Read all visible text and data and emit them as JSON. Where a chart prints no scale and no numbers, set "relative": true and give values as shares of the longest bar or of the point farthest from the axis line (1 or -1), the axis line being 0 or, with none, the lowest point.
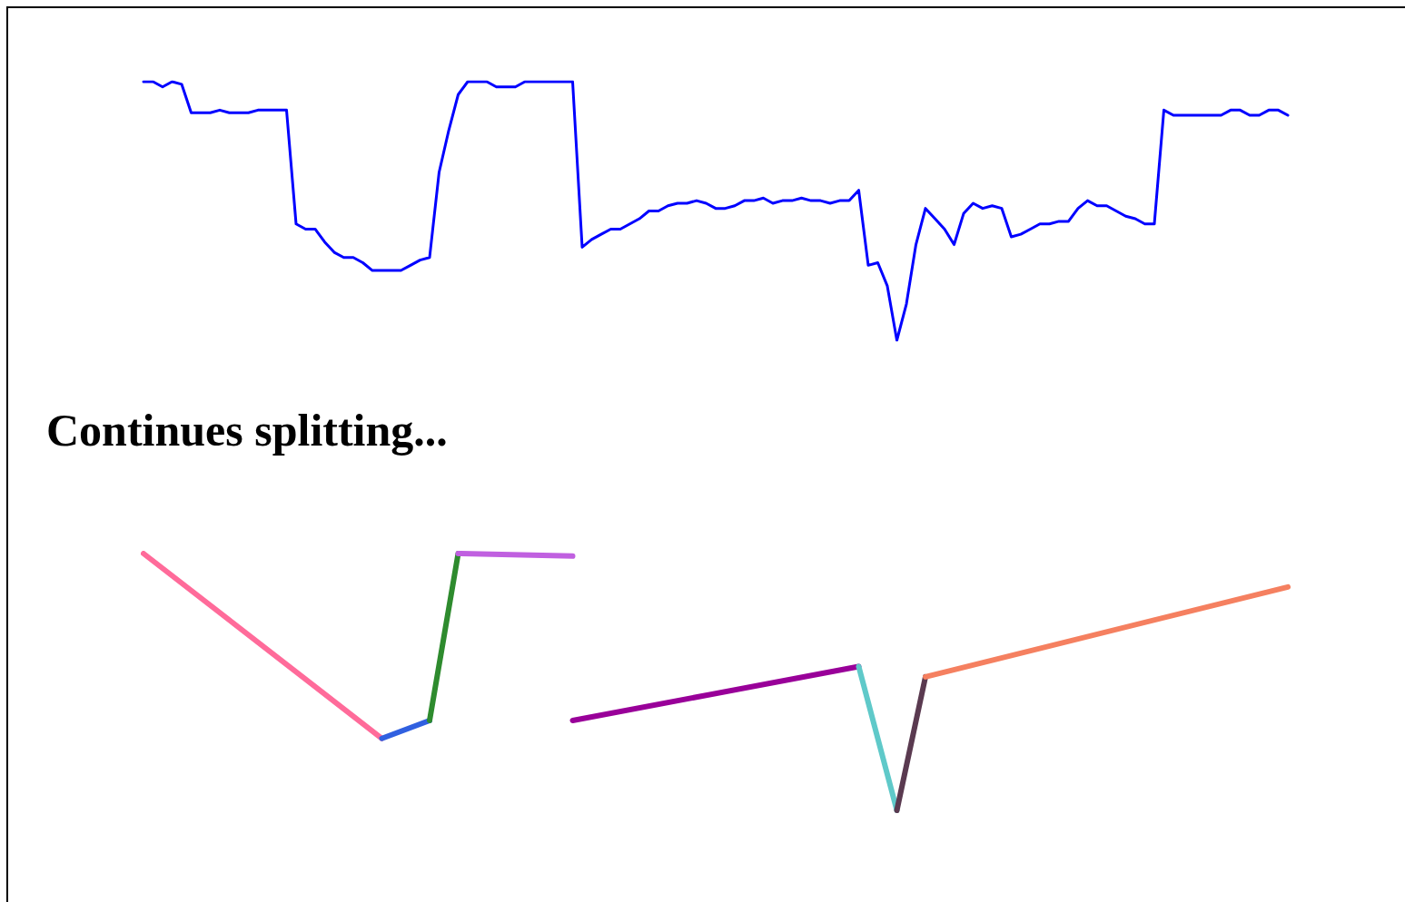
{
  "chart_data": [
    {
      "type": "line",
      "relative": true,
      "categories": [
        null,
        null,
        null,
        null,
        null,
        null,
        null,
        null,
        null,
        null,
        null,
        null,
        null,
        null,
        null,
        null,
        null,
        null,
        null,
        null,
        null,
        null,
        null,
        null,
        null,
        null,
        null,
        null,
        null,
        null,
        null,
        null,
        null,
        null,
        null,
        null,
        null,
        null,
        null,
        null,
        null,
        null,
        null,
        null,
        null,
        null,
        null,
        null,
        null,
        null,
        null,
        null,
        null,
        null,
        null,
        null,
        null,
        null,
        null,
        null,
        null,
        null,
        null,
        null,
        null,
        null,
        null,
        null,
        null,
        null,
        null,
        null,
        null,
        null,
        null,
        null,
        null,
        null,
        null,
        null,
        null,
        null,
        null,
        null,
        null,
        null,
        null,
        null,
        null,
        null,
        null,
        null,
        null,
        null,
        null,
        null,
        null,
        null,
        null,
        null,
        null,
        null,
        null,
        null,
        null,
        null,
        null,
        null,
        null,
        null,
        null,
        null,
        null,
        null,
        null,
        null,
        null,
        null,
        null,
        null,
        null
      ],
      "series": [
        {
          "color": "#0000ff",
          "values": [
            1.0,
            1.0,
            0.98,
            1.0,
            0.99,
            0.88,
            0.88,
            0.88,
            0.89,
            0.88,
            0.88,
            0.88,
            0.89,
            0.89,
            0.89,
            0.89,
            0.45,
            0.43,
            0.43,
            0.38,
            0.34,
            0.32,
            0.32,
            0.3,
            0.27,
            0.27,
            0.27,
            0.27,
            0.29,
            0.31,
            0.32,
            0.65,
            0.81,
            0.95,
            1.0,
            1.0,
            1.0,
            0.98,
            0.98,
            0.98,
            1.0,
            1.0,
            1.0,
            1.0,
            1.0,
            1.0,
            0.36,
            0.39,
            0.41,
            0.43,
            0.43,
            0.45,
            0.47,
            0.5,
            0.5,
            0.52,
            0.53,
            0.53,
            0.54,
            0.53,
            0.51,
            0.51,
            0.52,
            0.54,
            0.54,
            0.55,
            0.53,
            0.54,
            0.54,
            0.55,
            0.54,
            0.54,
            0.53,
            0.54,
            0.54,
            0.58,
            0.29,
            0.3,
            0.21,
            0.0,
            0.14,
            0.37,
            0.51,
            0.47,
            0.43,
            0.37,
            0.49,
            0.53,
            0.51,
            0.52,
            0.51,
            0.4,
            0.41,
            0.43,
            0.45,
            0.45,
            0.46,
            0.46,
            0.51,
            0.54,
            0.52,
            0.52,
            0.5,
            0.48,
            0.47,
            0.45,
            0.45,
            0.89,
            0.87,
            0.87,
            0.87,
            0.87,
            0.87,
            0.87,
            0.89,
            0.89,
            0.87,
            0.87,
            0.89,
            0.89,
            0.87
          ]
        }
      ]
    },
    {
      "type": "line",
      "relative": true,
      "title": "Continues splitting...",
      "categories": [
        null,
        null,
        null,
        null,
        null,
        null,
        null,
        null,
        null,
        null,
        null,
        null,
        null,
        null,
        null,
        null,
        null,
        null,
        null,
        null,
        null,
        null,
        null,
        null,
        null,
        null,
        null,
        null,
        null,
        null,
        null,
        null,
        null,
        null,
        null,
        null,
        null,
        null,
        null,
        null,
        null,
        null,
        null,
        null,
        null,
        null,
        null,
        null,
        null,
        null,
        null,
        null,
        null,
        null,
        null,
        null,
        null,
        null,
        null,
        null,
        null,
        null,
        null,
        null,
        null,
        null,
        null,
        null,
        null,
        null,
        null,
        null,
        null,
        null,
        null,
        null,
        null,
        null,
        null,
        null,
        null,
        null,
        null,
        null,
        null,
        null,
        null,
        null,
        null,
        null,
        null,
        null,
        null,
        null,
        null,
        null,
        null,
        null,
        null,
        null,
        null,
        null,
        null,
        null,
        null,
        null,
        null,
        null,
        null,
        null,
        null,
        null,
        null,
        null,
        null,
        null,
        null,
        null,
        null,
        null,
        null
      ],
      "series": [
        {
          "color": "#ff6b9a",
          "values": [
            1.0,
            null,
            null,
            null,
            null,
            null,
            null,
            null,
            null,
            null,
            null,
            null,
            null,
            null,
            null,
            null,
            null,
            null,
            null,
            null,
            null,
            null,
            null,
            null,
            null,
            0.28,
            null,
            null,
            null,
            null,
            null,
            null,
            null,
            null,
            null,
            null,
            null,
            null,
            null,
            null,
            null,
            null,
            null,
            null,
            null,
            null,
            null,
            null,
            null,
            null,
            null,
            null,
            null,
            null,
            null,
            null,
            null,
            null,
            null,
            null,
            null,
            null,
            null,
            null,
            null,
            null,
            null,
            null,
            null,
            null,
            null,
            null,
            null,
            null,
            null,
            null,
            null,
            null,
            null,
            null,
            null,
            null,
            null,
            null,
            null,
            null,
            null,
            null,
            null,
            null,
            null,
            null,
            null,
            null,
            null,
            null,
            null,
            null,
            null,
            null,
            null,
            null,
            null,
            null,
            null,
            null,
            null,
            null,
            null,
            null,
            null,
            null,
            null,
            null,
            null,
            null,
            null,
            null,
            null,
            null,
            null
          ]
        },
        {
          "color": "#3060e0",
          "values": [
            null,
            null,
            null,
            null,
            null,
            null,
            null,
            null,
            null,
            null,
            null,
            null,
            null,
            null,
            null,
            null,
            null,
            null,
            null,
            null,
            null,
            null,
            null,
            null,
            null,
            0.28,
            null,
            null,
            null,
            null,
            0.35,
            null,
            null,
            null,
            null,
            null,
            null,
            null,
            null,
            null,
            null,
            null,
            null,
            null,
            null,
            null,
            null,
            null,
            null,
            null,
            null,
            null,
            null,
            null,
            null,
            null,
            null,
            null,
            null,
            null,
            null,
            null,
            null,
            null,
            null,
            null,
            null,
            null,
            null,
            null,
            null,
            null,
            null,
            null,
            null,
            null,
            null,
            null,
            null,
            null,
            null,
            null,
            null,
            null,
            null,
            null,
            null,
            null,
            null,
            null,
            null,
            null,
            null,
            null,
            null,
            null,
            null,
            null,
            null,
            null,
            null,
            null,
            null,
            null,
            null,
            null,
            null,
            null,
            null,
            null,
            null,
            null,
            null,
            null,
            null,
            null,
            null,
            null,
            null,
            null,
            null
          ]
        },
        {
          "color": "#2e8b2e",
          "values": [
            null,
            null,
            null,
            null,
            null,
            null,
            null,
            null,
            null,
            null,
            null,
            null,
            null,
            null,
            null,
            null,
            null,
            null,
            null,
            null,
            null,
            null,
            null,
            null,
            null,
            null,
            null,
            null,
            null,
            null,
            0.35,
            null,
            null,
            1.0,
            null,
            null,
            null,
            null,
            null,
            null,
            null,
            null,
            null,
            null,
            null,
            null,
            null,
            null,
            null,
            null,
            null,
            null,
            null,
            null,
            null,
            null,
            null,
            null,
            null,
            null,
            null,
            null,
            null,
            null,
            null,
            null,
            null,
            null,
            null,
            null,
            null,
            null,
            null,
            null,
            null,
            null,
            null,
            null,
            null,
            null,
            null,
            null,
            null,
            null,
            null,
            null,
            null,
            null,
            null,
            null,
            null,
            null,
            null,
            null,
            null,
            null,
            null,
            null,
            null,
            null,
            null,
            null,
            null,
            null,
            null,
            null,
            null,
            null,
            null,
            null,
            null,
            null,
            null,
            null,
            null,
            null,
            null,
            null,
            null,
            null,
            null
          ]
        },
        {
          "color": "#c060e0",
          "values": [
            null,
            null,
            null,
            null,
            null,
            null,
            null,
            null,
            null,
            null,
            null,
            null,
            null,
            null,
            null,
            null,
            null,
            null,
            null,
            null,
            null,
            null,
            null,
            null,
            null,
            null,
            null,
            null,
            null,
            null,
            null,
            null,
            null,
            1.0,
            null,
            null,
            null,
            null,
            null,
            null,
            null,
            null,
            null,
            null,
            null,
            0.99,
            null,
            null,
            null,
            null,
            null,
            null,
            null,
            null,
            null,
            null,
            null,
            null,
            null,
            null,
            null,
            null,
            null,
            null,
            null,
            null,
            null,
            null,
            null,
            null,
            null,
            null,
            null,
            null,
            null,
            null,
            null,
            null,
            null,
            null,
            null,
            null,
            null,
            null,
            null,
            null,
            null,
            null,
            null,
            null,
            null,
            null,
            null,
            null,
            null,
            null,
            null,
            null,
            null,
            null,
            null,
            null,
            null,
            null,
            null,
            null,
            null,
            null,
            null,
            null,
            null,
            null,
            null,
            null,
            null,
            null,
            null,
            null,
            null,
            null,
            null
          ]
        },
        {
          "color": "#990099",
          "values": [
            null,
            null,
            null,
            null,
            null,
            null,
            null,
            null,
            null,
            null,
            null,
            null,
            null,
            null,
            null,
            null,
            null,
            null,
            null,
            null,
            null,
            null,
            null,
            null,
            null,
            null,
            null,
            null,
            null,
            null,
            null,
            null,
            null,
            null,
            null,
            null,
            null,
            null,
            null,
            null,
            null,
            null,
            null,
            null,
            null,
            0.35,
            null,
            null,
            null,
            null,
            null,
            null,
            null,
            null,
            null,
            null,
            null,
            null,
            null,
            null,
            null,
            null,
            null,
            null,
            null,
            null,
            null,
            null,
            null,
            null,
            null,
            null,
            null,
            null,
            null,
            0.56,
            null,
            null,
            null,
            null,
            null,
            null,
            null,
            null,
            null,
            null,
            null,
            null,
            null,
            null,
            null,
            null,
            null,
            null,
            null,
            null,
            null,
            null,
            null,
            null,
            null,
            null,
            null,
            null,
            null,
            null,
            null,
            null,
            null,
            null,
            null,
            null,
            null,
            null,
            null,
            null,
            null,
            null,
            null,
            null,
            null
          ]
        },
        {
          "color": "#5fc9c9",
          "values": [
            null,
            null,
            null,
            null,
            null,
            null,
            null,
            null,
            null,
            null,
            null,
            null,
            null,
            null,
            null,
            null,
            null,
            null,
            null,
            null,
            null,
            null,
            null,
            null,
            null,
            null,
            null,
            null,
            null,
            null,
            null,
            null,
            null,
            null,
            null,
            null,
            null,
            null,
            null,
            null,
            null,
            null,
            null,
            null,
            null,
            null,
            null,
            null,
            null,
            null,
            null,
            null,
            null,
            null,
            null,
            null,
            null,
            null,
            null,
            null,
            null,
            null,
            null,
            null,
            null,
            null,
            null,
            null,
            null,
            null,
            null,
            null,
            null,
            null,
            null,
            0.56,
            null,
            null,
            null,
            0.0,
            null,
            null,
            null,
            null,
            null,
            null,
            null,
            null,
            null,
            null,
            null,
            null,
            null,
            null,
            null,
            null,
            null,
            null,
            null,
            null,
            null,
            null,
            null,
            null,
            null,
            null,
            null,
            null,
            null,
            null,
            null,
            null,
            null,
            null,
            null,
            null,
            null,
            null,
            null,
            null,
            null
          ]
        },
        {
          "color": "#5a3a50",
          "values": [
            null,
            null,
            null,
            null,
            null,
            null,
            null,
            null,
            null,
            null,
            null,
            null,
            null,
            null,
            null,
            null,
            null,
            null,
            null,
            null,
            null,
            null,
            null,
            null,
            null,
            null,
            null,
            null,
            null,
            null,
            null,
            null,
            null,
            null,
            null,
            null,
            null,
            null,
            null,
            null,
            null,
            null,
            null,
            null,
            null,
            null,
            null,
            null,
            null,
            null,
            null,
            null,
            null,
            null,
            null,
            null,
            null,
            null,
            null,
            null,
            null,
            null,
            null,
            null,
            null,
            null,
            null,
            null,
            null,
            null,
            null,
            null,
            null,
            null,
            null,
            null,
            null,
            null,
            null,
            0.0,
            null,
            null,
            0.52,
            null,
            null,
            null,
            null,
            null,
            null,
            null,
            null,
            null,
            null,
            null,
            null,
            null,
            null,
            null,
            null,
            null,
            null,
            null,
            null,
            null,
            null,
            null,
            null,
            null,
            null,
            null,
            null,
            null,
            null,
            null,
            null,
            null,
            null,
            null,
            null,
            null,
            null
          ]
        },
        {
          "color": "#f58060",
          "values": [
            null,
            null,
            null,
            null,
            null,
            null,
            null,
            null,
            null,
            null,
            null,
            null,
            null,
            null,
            null,
            null,
            null,
            null,
            null,
            null,
            null,
            null,
            null,
            null,
            null,
            null,
            null,
            null,
            null,
            null,
            null,
            null,
            null,
            null,
            null,
            null,
            null,
            null,
            null,
            null,
            null,
            null,
            null,
            null,
            null,
            null,
            null,
            null,
            null,
            null,
            null,
            null,
            null,
            null,
            null,
            null,
            null,
            null,
            null,
            null,
            null,
            null,
            null,
            null,
            null,
            null,
            null,
            null,
            null,
            null,
            null,
            null,
            null,
            null,
            null,
            null,
            null,
            null,
            null,
            null,
            null,
            null,
            0.52,
            null,
            null,
            null,
            null,
            null,
            null,
            null,
            null,
            null,
            null,
            null,
            null,
            null,
            null,
            null,
            null,
            null,
            null,
            null,
            null,
            null,
            null,
            null,
            null,
            null,
            null,
            null,
            null,
            null,
            null,
            null,
            null,
            null,
            null,
            null,
            null,
            null,
            0.87
          ]
        }
      ]
    }
  ]
}
